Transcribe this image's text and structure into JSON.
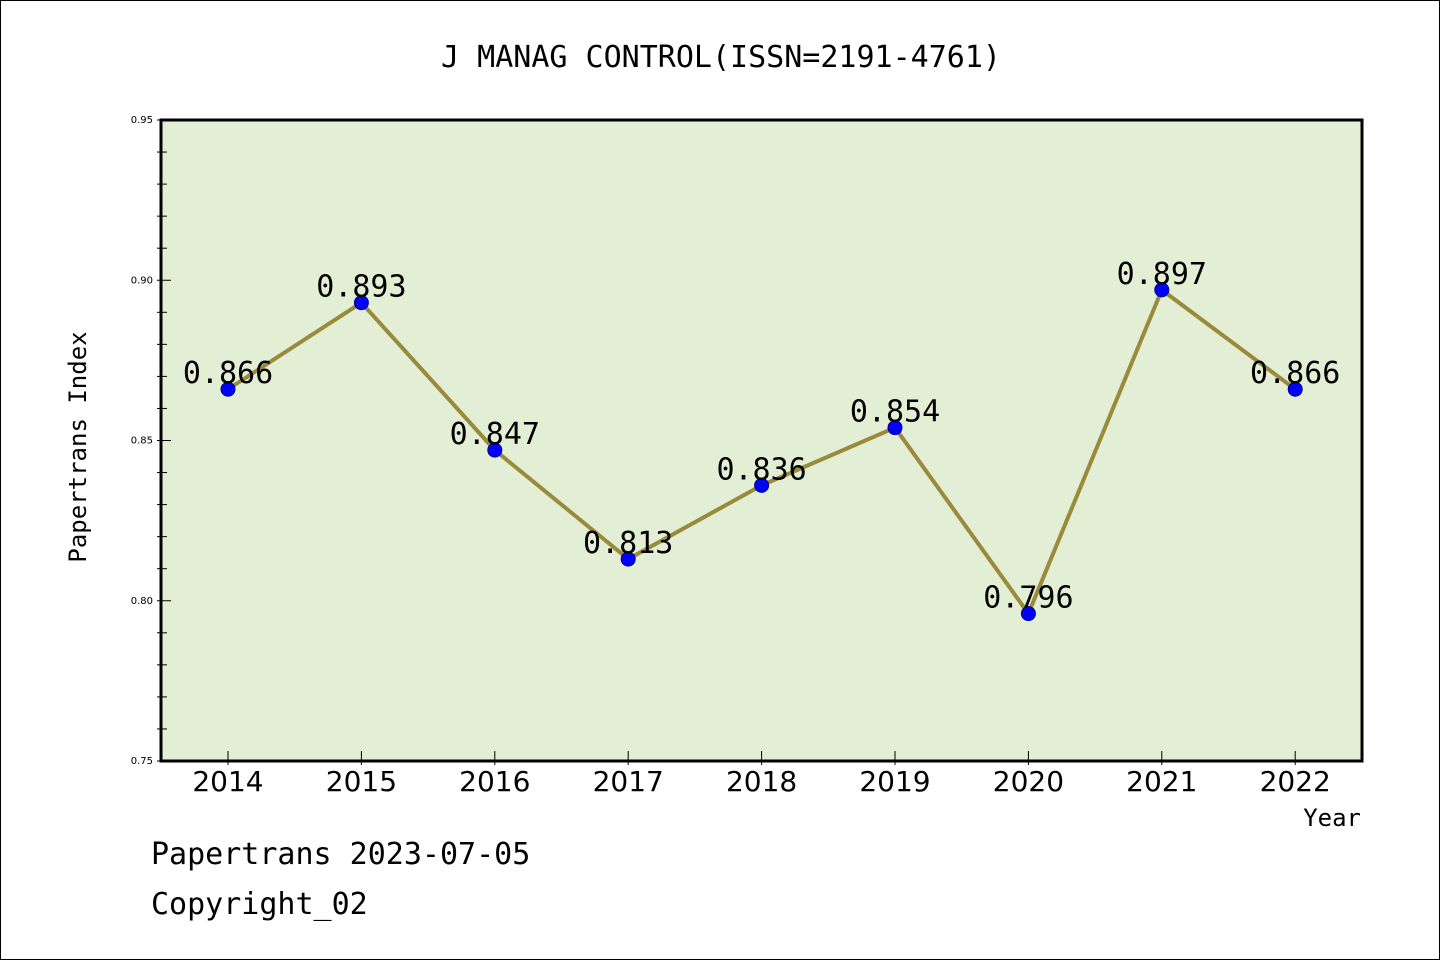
{
  "chart_data": {
    "type": "line",
    "title": "J MANAG CONTROL(ISSN=2191-4761)",
    "xlabel": "Year",
    "ylabel": "Papertrans Index",
    "x": [
      "2014",
      "2015",
      "2016",
      "2017",
      "2018",
      "2019",
      "2020",
      "2021",
      "2022"
    ],
    "series": [
      {
        "values": [
          0.866,
          0.893,
          0.847,
          0.813,
          0.836,
          0.854,
          0.796,
          0.897,
          0.866
        ],
        "data_labels": [
          "0.866",
          "0.893",
          "0.847",
          "0.813",
          "0.836",
          "0.854",
          "0.796",
          "0.897",
          "0.866"
        ]
      }
    ],
    "ylim": [
      0.75,
      0.95
    ],
    "yticks": [
      "0.75",
      "0.80",
      "0.85",
      "0.90",
      "0.95"
    ],
    "grid": false,
    "colors": {
      "plot_background": "#e2efd4",
      "line": "#9a8a3c",
      "marker": "#0000ff",
      "marker_edge": "#00008b"
    }
  },
  "footer": {
    "line1": "Papertrans 2023-07-05",
    "line2": "Copyright_02"
  }
}
